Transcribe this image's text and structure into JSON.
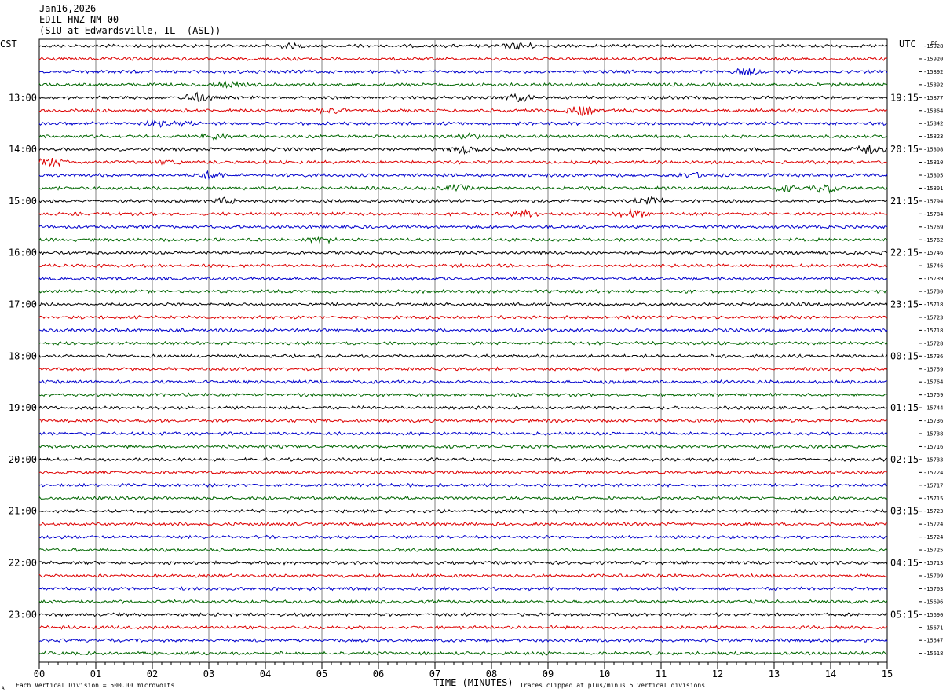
{
  "header": {
    "line1": "Jan16,2026",
    "line2": "EDIL HNZ NM 00",
    "line3": "(SIU at Edwardsville, IL  (ASL))"
  },
  "labels": {
    "left_tz": "CST",
    "right_tz": "UTC",
    "dc": "DC",
    "xlabel": "TIME (MINUTES)",
    "scale_note": "Each Vertical Division =  500.00 microvolts",
    "clip_note": "Traces clipped at plus/minus 5 vertical divisions",
    "corner_mark": "A"
  },
  "colors": {
    "trace_cycle": [
      "#000000",
      "#dd0000",
      "#0000cc",
      "#006600"
    ],
    "grid": "#808080"
  },
  "chart_data": {
    "type": "line",
    "title": "",
    "xlabel": "TIME (MINUTES)",
    "ylabel": "",
    "x_ticks": [
      "00",
      "01",
      "02",
      "03",
      "04",
      "05",
      "06",
      "07",
      "08",
      "09",
      "10",
      "11",
      "12",
      "13",
      "14",
      "15"
    ],
    "xlim": [
      0,
      15
    ],
    "grid": true,
    "left_hour_labels": [
      "13:00",
      "14:00",
      "15:00",
      "16:00",
      "17:00",
      "18:00",
      "19:00",
      "20:00",
      "21:00",
      "22:00",
      "23:00"
    ],
    "right_hour_labels": [
      "19:15",
      "20:15",
      "21:15",
      "22:15",
      "23:15",
      "00:15",
      "01:15",
      "02:15",
      "03:15",
      "04:15",
      "05:15"
    ],
    "dc_offsets": [
      -15928,
      -15920,
      -15892,
      -15892,
      -15877,
      -15864,
      -15842,
      -15823,
      -15808,
      -15810,
      -15805,
      -15801,
      -15794,
      -15784,
      -15769,
      -15762,
      -15746,
      -15746,
      -15739,
      -15730,
      -15718,
      -15723,
      -15718,
      -15728,
      -15736,
      -15759,
      -15764,
      -15759,
      -15744,
      -15736,
      -15738,
      -15716,
      -15733,
      -15724,
      -15717,
      -15715,
      -15723,
      -15724,
      -15724,
      -15725,
      -15713,
      -15709,
      -15703,
      -15696,
      -15690,
      -15671,
      -15647,
      -15618
    ],
    "series": [
      {
        "events": [
          [
            8.5,
            4
          ],
          [
            4.4,
            2
          ]
        ]
      },
      {
        "events": []
      },
      {
        "events": [
          [
            12.5,
            4
          ]
        ]
      },
      {
        "events": [
          [
            3.3,
            3
          ]
        ]
      },
      {
        "events": [
          [
            2.8,
            5
          ],
          [
            8.5,
            4
          ]
        ]
      },
      {
        "events": [
          [
            9.6,
            6
          ],
          [
            5.2,
            3
          ]
        ]
      },
      {
        "events": [
          [
            2.1,
            3
          ],
          [
            2.6,
            2
          ]
        ]
      },
      {
        "events": [
          [
            3.1,
            3
          ],
          [
            7.6,
            3
          ]
        ]
      },
      {
        "events": [
          [
            7.5,
            4
          ],
          [
            14.7,
            6
          ]
        ]
      },
      {
        "events": [
          [
            0.2,
            5
          ],
          [
            2.3,
            2
          ]
        ]
      },
      {
        "events": [
          [
            3.0,
            4
          ],
          [
            11.5,
            3
          ]
        ]
      },
      {
        "events": [
          [
            13.2,
            4
          ],
          [
            13.9,
            5
          ],
          [
            7.4,
            3
          ]
        ]
      },
      {
        "events": [
          [
            3.3,
            3
          ],
          [
            10.8,
            4
          ]
        ]
      },
      {
        "events": [
          [
            8.6,
            4
          ],
          [
            10.5,
            5
          ]
        ]
      },
      {
        "events": []
      },
      {
        "events": [
          [
            5.0,
            3
          ]
        ]
      },
      {
        "events": []
      },
      {
        "events": []
      },
      {
        "events": []
      },
      {
        "events": []
      },
      {
        "events": []
      },
      {
        "events": []
      },
      {
        "events": []
      },
      {
        "events": []
      },
      {
        "events": []
      },
      {
        "events": []
      },
      {
        "events": []
      },
      {
        "events": []
      },
      {
        "events": []
      },
      {
        "events": []
      },
      {
        "events": []
      },
      {
        "events": []
      },
      {
        "events": []
      },
      {
        "events": []
      },
      {
        "events": []
      },
      {
        "events": []
      },
      {
        "events": []
      },
      {
        "events": []
      },
      {
        "events": []
      },
      {
        "events": []
      },
      {
        "events": []
      },
      {
        "events": []
      },
      {
        "events": []
      },
      {
        "events": []
      },
      {
        "events": []
      },
      {
        "events": []
      },
      {
        "events": []
      },
      {
        "events": []
      }
    ]
  }
}
